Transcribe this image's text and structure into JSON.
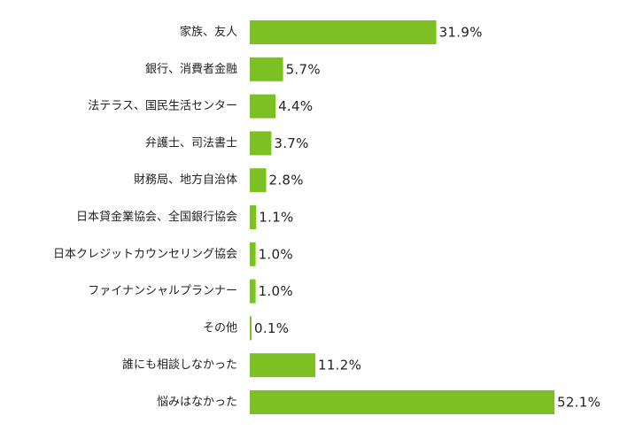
{
  "chart_data": {
    "type": "bar",
    "orientation": "horizontal",
    "title": "",
    "xlabel": "",
    "ylabel": "",
    "grid": false,
    "legend": "none",
    "bar_color": "#7dc024",
    "xlim": [
      0,
      52.1
    ],
    "categories": [
      "家族、友人",
      "銀行、消費者金融",
      "法テラス、国民生活センター",
      "弁護士、司法書士",
      "財務局、地方自治体",
      "日本貸金業協会、全国銀行協会",
      "日本クレジットカウンセリング協会",
      "ファイナンシャルプランナー",
      "その他",
      "誰にも相談しなかった",
      "悩みはなかった"
    ],
    "values": [
      31.9,
      5.7,
      4.4,
      3.7,
      2.8,
      1.1,
      1.0,
      1.0,
      0.1,
      11.2,
      52.1
    ],
    "value_labels": [
      "31.9%",
      "5.7%",
      "4.4%",
      "3.7%",
      "2.8%",
      "1.1%",
      "1.0%",
      "1.0%",
      "0.1%",
      "11.2%",
      "52.1%"
    ]
  }
}
